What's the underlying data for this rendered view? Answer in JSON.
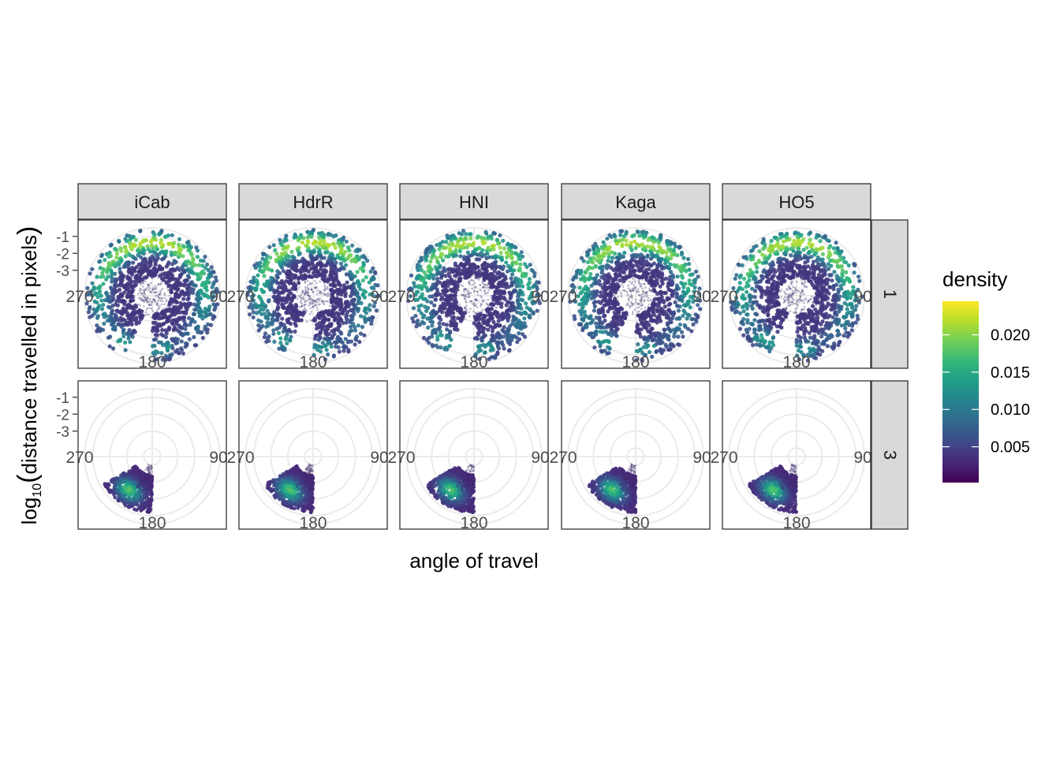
{
  "chart_data": {
    "type": "scatter",
    "subtype": "polar-faceted-density",
    "xlabel": "angle of travel",
    "ylabel_prefix": "log",
    "ylabel_sub": "10",
    "ylabel_main": "distance travelled in pixels",
    "facet_columns": [
      "iCab",
      "HdrR",
      "HNI",
      "Kaga",
      "HO5"
    ],
    "facet_rows": [
      "1",
      "3"
    ],
    "angle_ticks": {
      "left": "270",
      "right": "90",
      "bottom": "180"
    },
    "radial_ticks": [
      "-1",
      "-2",
      "-3"
    ],
    "radial_range": [
      -4.5,
      -0.5
    ],
    "legend": {
      "title": "density",
      "ticks": [
        "0.020",
        "0.015",
        "0.010",
        "0.005"
      ],
      "tick_values": [
        0.02,
        0.015,
        0.01,
        0.005
      ],
      "range": [
        0.0002,
        0.0245
      ],
      "placement": "right",
      "colormap": "viridis"
    },
    "series": [
      {
        "row": "1",
        "description": "annulus of movement",
        "angle_span_deg": [
          205,
          180
        ],
        "radius_range": [
          -3.4,
          -0.6
        ],
        "peak_angle_deg": 0,
        "peak_density": 0.0235
      },
      {
        "row": "3",
        "description": "narrow wedge",
        "angle_span_deg": [
          180,
          240
        ],
        "radius_range": [
          -4.0,
          -1.2
        ],
        "peak_angle_deg": 215,
        "peak_density": 0.018
      }
    ],
    "grid": true,
    "colors": {
      "strip_fill": "#d9d9d9",
      "panel_border": "#333333",
      "grid": "#ebebeb",
      "viridis": [
        "#440154",
        "#482878",
        "#3e4a89",
        "#31688e",
        "#26828e",
        "#1f9e89",
        "#35b779",
        "#6ece58",
        "#b5de2b",
        "#fde725"
      ]
    }
  }
}
